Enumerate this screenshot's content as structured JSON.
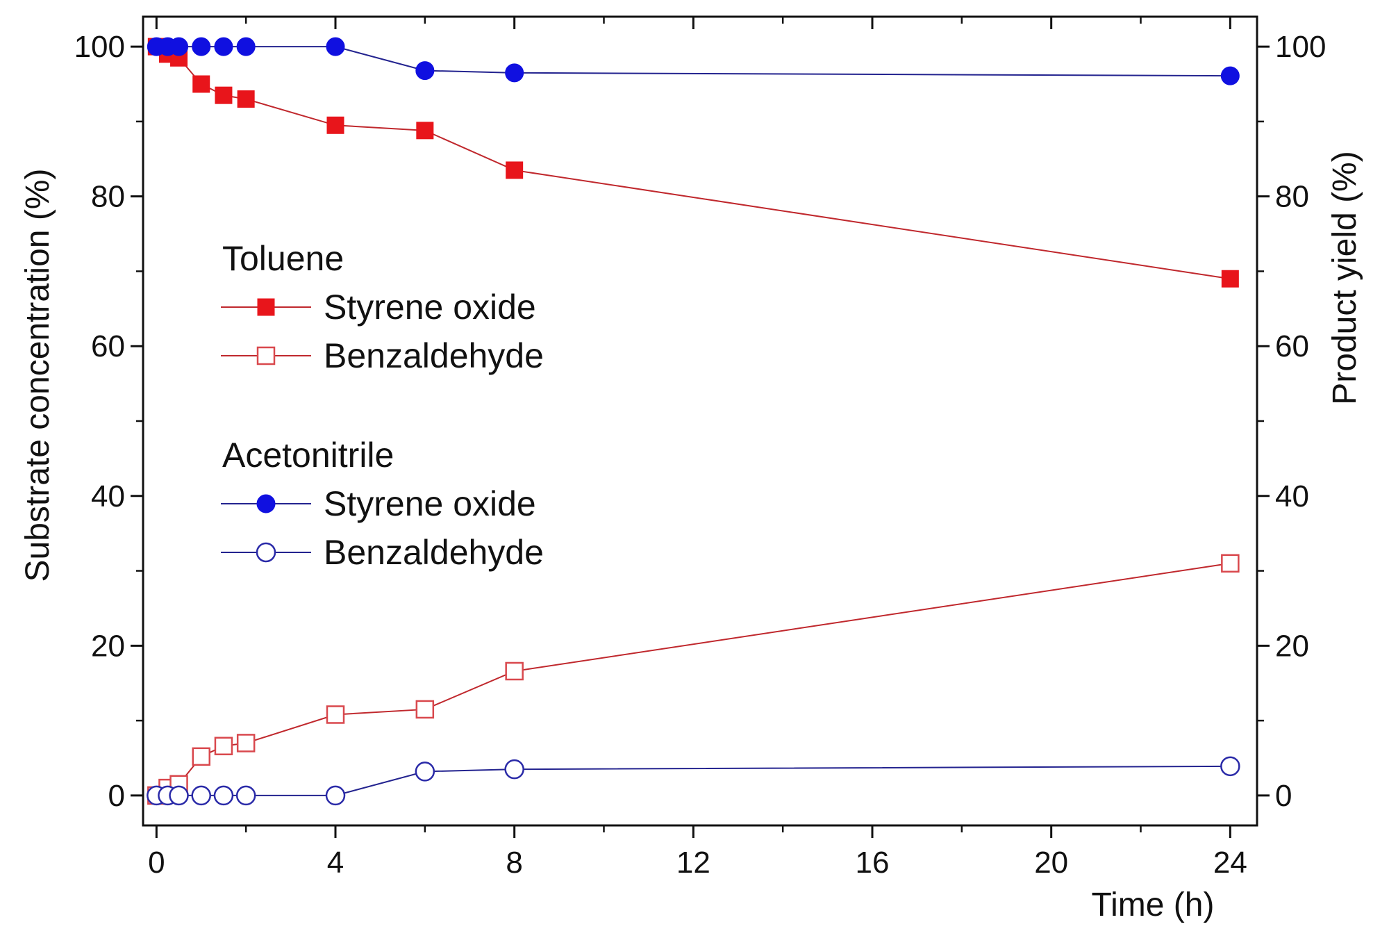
{
  "chart_data": {
    "type": "line",
    "title": "",
    "xlabel": "Time (h)",
    "ylabel_left": "Substrate concentration (%)",
    "ylabel_right": "Product yield (%)",
    "xlim": [
      -0.3,
      24.6
    ],
    "ylim": [
      -4,
      104
    ],
    "x_ticks": [
      0,
      4,
      8,
      12,
      16,
      20,
      24
    ],
    "y_ticks": [
      0,
      20,
      40,
      60,
      80,
      100
    ],
    "grid": false,
    "legend_groups": [
      {
        "title": "Toluene",
        "series_indices": [
          0,
          1
        ]
      },
      {
        "title": "Acetonitrile",
        "series_indices": [
          2,
          3
        ]
      }
    ],
    "series": [
      {
        "name": "Styrene oxide",
        "group": "Toluene",
        "color": "#e8151b",
        "line_color": "#c0282d",
        "marker": "square-filled",
        "x": [
          0,
          0.25,
          0.5,
          1,
          1.5,
          2,
          4,
          6,
          8,
          24
        ],
        "y": [
          100,
          99,
          98.5,
          95,
          93.5,
          93,
          89.5,
          88.8,
          83.5,
          69
        ]
      },
      {
        "name": "Benzaldehyde",
        "group": "Toluene",
        "color": "#d9484d",
        "line_color": "#c0282d",
        "marker": "square-open",
        "x": [
          0,
          0.25,
          0.5,
          1,
          1.5,
          2,
          4,
          6,
          8,
          24
        ],
        "y": [
          0,
          1,
          1.5,
          5.2,
          6.6,
          7,
          10.8,
          11.5,
          16.6,
          31
        ]
      },
      {
        "name": "Styrene oxide",
        "group": "Acetonitrile",
        "color": "#1010e0",
        "line_color": "#23238f",
        "marker": "circle-filled",
        "x": [
          0,
          0.25,
          0.5,
          1,
          1.5,
          2,
          4,
          6,
          8,
          24
        ],
        "y": [
          100,
          100,
          100,
          100,
          100,
          100,
          100,
          96.8,
          96.5,
          96.1
        ]
      },
      {
        "name": "Benzaldehyde",
        "group": "Acetonitrile",
        "color": "#2a2aa8",
        "line_color": "#23238f",
        "marker": "circle-open",
        "x": [
          0,
          0.25,
          0.5,
          1,
          1.5,
          2,
          4,
          6,
          8,
          24
        ],
        "y": [
          0,
          0,
          0,
          0,
          0,
          0,
          0,
          3.2,
          3.5,
          3.9
        ]
      }
    ]
  }
}
